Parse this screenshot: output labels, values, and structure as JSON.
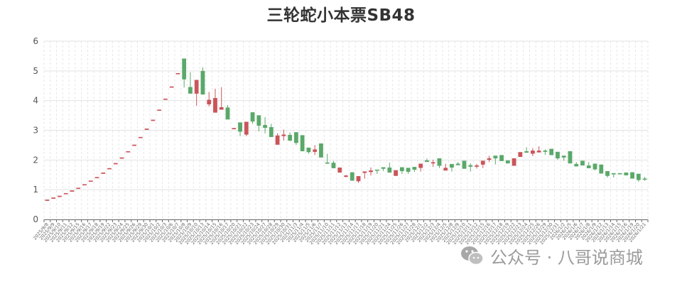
{
  "chart_data": {
    "type": "candlestick",
    "title": "三轮蛇小本票SB48",
    "xlabel": "",
    "ylabel": "",
    "ylim": [
      0,
      6
    ],
    "yticks": [
      0,
      1,
      2,
      3,
      4,
      5,
      6
    ],
    "grid": true,
    "colors": {
      "up": "#c9555a",
      "down": "#5aa86a"
    },
    "value_order": [
      "open",
      "close",
      "low",
      "high"
    ],
    "categories": [
      "2025/9/8",
      "2025/9/9",
      "2025/9/10",
      "2025/9/11",
      "2025/9/12",
      "2025/9/15",
      "2025/9/16",
      "2025/9/17",
      "2025/9/18",
      "2025/9/19",
      "2025/9/22",
      "2025/9/23",
      "2025/9/24",
      "2025/9/25",
      "2025/9/26",
      "2025/9/29",
      "2025/9/30",
      "2025/10/1",
      "2025/10/2",
      "2025/10/3",
      "2025/10/6",
      "2025/10/7",
      "2025/10/8",
      "2025/10/9",
      "2025/10/10",
      "2025/10/13",
      "2025/10/14",
      "2025/10/15",
      "2025/10/16",
      "2025/10/17",
      "2025/10/20",
      "2025/10/21",
      "2025/10/22",
      "2025/10/23",
      "2025/10/24",
      "2025/10/27",
      "2025/10/28",
      "2025/10/29",
      "2025/10/30",
      "2025/10/31",
      "2025/11/3",
      "2025/11/4",
      "2025/11/5",
      "2025/11/6",
      "2025/11/7",
      "2025/11/10",
      "2025/11/11",
      "2025/11/12",
      "2025/11/13",
      "2025/11/14",
      "2025/11/17",
      "2025/11/18",
      "2025/11/19",
      "2025/11/20",
      "2025/11/21",
      "2025/11/24",
      "2025/11/25",
      "2025/11/26",
      "2025/11/27",
      "2025/11/28",
      "2025/12/1",
      "2025/12/2",
      "2025/12/3",
      "2025/12/4",
      "2025/12/5",
      "2025/12/8",
      "2025/12/9",
      "2025/12/10",
      "2025/12/11",
      "2025/12/12",
      "2025/12/15",
      "2025/12/16",
      "2025/12/17",
      "2025/12/18",
      "2025/12/19",
      "2025/12/22",
      "2025/12/23",
      "2025/12/24",
      "2025/12/25",
      "2025/12/26",
      "2025/12/29",
      "2025/12/30",
      "2025/12/31",
      "2026/1/2",
      "2026/1/5",
      "2026/1/6",
      "2026/1/7",
      "2026/1/8",
      "2026/1/9",
      "2026/1/12",
      "2026/1/13",
      "2026/1/14",
      "2026/1/15",
      "2026/1/16",
      "2026/1/19",
      "2026/1/20",
      "2026/1/21"
    ],
    "values": [
      [
        0.65,
        0.66,
        0.65,
        0.66
      ],
      [
        0.72,
        0.73,
        0.72,
        0.73
      ],
      [
        0.78,
        0.79,
        0.78,
        0.79
      ],
      [
        0.87,
        0.88,
        0.87,
        0.88
      ],
      [
        0.96,
        0.97,
        0.96,
        0.97
      ],
      [
        1.05,
        1.06,
        1.05,
        1.06
      ],
      [
        1.17,
        1.18,
        1.17,
        1.18
      ],
      [
        1.29,
        1.3,
        1.29,
        1.3
      ],
      [
        1.41,
        1.42,
        1.41,
        1.42
      ],
      [
        1.56,
        1.57,
        1.56,
        1.57
      ],
      [
        1.71,
        1.72,
        1.71,
        1.72
      ],
      [
        1.88,
        1.89,
        1.88,
        1.89
      ],
      [
        2.07,
        2.08,
        2.07,
        2.08
      ],
      [
        2.28,
        2.29,
        2.28,
        2.29
      ],
      [
        2.5,
        2.51,
        2.5,
        2.51
      ],
      [
        2.76,
        2.77,
        2.76,
        2.77
      ],
      [
        3.04,
        3.05,
        3.04,
        3.05
      ],
      [
        3.34,
        3.35,
        3.34,
        3.35
      ],
      [
        3.68,
        3.69,
        3.68,
        3.69
      ],
      [
        4.05,
        4.06,
        4.05,
        4.06
      ],
      [
        4.46,
        4.47,
        4.46,
        4.47
      ],
      [
        4.91,
        4.92,
        4.91,
        4.92
      ],
      [
        5.41,
        4.72,
        4.44,
        5.41
      ],
      [
        4.45,
        4.24,
        4.24,
        4.96
      ],
      [
        4.24,
        4.69,
        3.82,
        4.69
      ],
      [
        4.99,
        4.21,
        4.21,
        5.12
      ],
      [
        3.88,
        4.02,
        3.8,
        4.29
      ],
      [
        3.6,
        4.08,
        3.6,
        4.4
      ],
      [
        3.7,
        3.77,
        3.7,
        4.45
      ],
      [
        3.76,
        3.37,
        3.37,
        3.85
      ],
      [
        3.05,
        3.07,
        3.04,
        3.08
      ],
      [
        3.26,
        2.96,
        2.8,
        3.26
      ],
      [
        2.86,
        3.28,
        2.8,
        3.28
      ],
      [
        3.6,
        3.3,
        3.22,
        3.6
      ],
      [
        3.5,
        3.16,
        2.96,
        3.5
      ],
      [
        3.17,
        3.09,
        2.9,
        3.44
      ],
      [
        3.1,
        2.78,
        2.78,
        3.22
      ],
      [
        2.52,
        2.82,
        2.52,
        2.9
      ],
      [
        2.81,
        2.85,
        2.65,
        3.02
      ],
      [
        2.84,
        2.66,
        2.63,
        2.93
      ],
      [
        2.93,
        2.58,
        2.5,
        2.93
      ],
      [
        2.83,
        2.3,
        2.3,
        2.83
      ],
      [
        2.41,
        2.27,
        2.21,
        2.41
      ],
      [
        2.28,
        2.35,
        2.17,
        2.5
      ],
      [
        2.55,
        2.09,
        2.09,
        2.55
      ],
      [
        1.91,
        1.9,
        1.9,
        2.21
      ],
      [
        1.9,
        1.73,
        1.73,
        1.97
      ],
      [
        1.58,
        1.74,
        1.58,
        1.74
      ],
      [
        1.45,
        1.47,
        1.41,
        1.5
      ],
      [
        1.58,
        1.31,
        1.31,
        1.58
      ],
      [
        1.29,
        1.45,
        1.23,
        1.45
      ],
      [
        1.57,
        1.61,
        1.37,
        1.61
      ],
      [
        1.6,
        1.64,
        1.48,
        1.75
      ],
      [
        1.67,
        1.66,
        1.53,
        1.67
      ],
      [
        1.75,
        1.71,
        1.63,
        1.75
      ],
      [
        1.74,
        1.58,
        1.58,
        1.91
      ],
      [
        1.47,
        1.65,
        1.47,
        1.65
      ],
      [
        1.75,
        1.63,
        1.53,
        1.75
      ],
      [
        1.73,
        1.61,
        1.53,
        1.73
      ],
      [
        1.76,
        1.68,
        1.6,
        1.76
      ],
      [
        1.74,
        1.87,
        1.61,
        1.87
      ],
      [
        1.98,
        1.94,
        1.94,
        2.05
      ],
      [
        1.89,
        1.92,
        1.77,
        2.01
      ],
      [
        2.05,
        1.81,
        1.73,
        2.05
      ],
      [
        1.65,
        1.73,
        1.65,
        1.87
      ],
      [
        1.86,
        1.75,
        1.61,
        1.86
      ],
      [
        1.87,
        1.83,
        1.83,
        1.93
      ],
      [
        1.97,
        1.71,
        1.71,
        1.97
      ],
      [
        1.82,
        1.78,
        1.61,
        1.89
      ],
      [
        1.78,
        1.81,
        1.71,
        1.87
      ],
      [
        1.85,
        1.97,
        1.73,
        1.97
      ],
      [
        2.01,
        2.05,
        1.93,
        2.14
      ],
      [
        2.14,
        2.06,
        1.85,
        2.14
      ],
      [
        2.16,
        1.97,
        1.97,
        2.16
      ],
      [
        1.98,
        1.89,
        1.89,
        1.98
      ],
      [
        1.81,
        2.05,
        1.81,
        2.05
      ],
      [
        2.11,
        2.26,
        2.11,
        2.26
      ],
      [
        2.29,
        2.25,
        2.25,
        2.43
      ],
      [
        2.22,
        2.31,
        2.13,
        2.4
      ],
      [
        2.26,
        2.31,
        2.26,
        2.46
      ],
      [
        2.31,
        2.3,
        2.17,
        2.36
      ],
      [
        2.37,
        2.17,
        2.17,
        2.37
      ],
      [
        2.27,
        2.06,
        2.01,
        2.27
      ],
      [
        2.14,
        2.09,
        1.97,
        2.14
      ],
      [
        2.29,
        1.89,
        1.89,
        2.29
      ],
      [
        1.86,
        1.79,
        1.79,
        1.93
      ],
      [
        1.97,
        1.82,
        1.82,
        1.97
      ],
      [
        1.81,
        1.73,
        1.73,
        1.93
      ],
      [
        1.87,
        1.69,
        1.65,
        1.87
      ],
      [
        1.84,
        1.55,
        1.55,
        1.84
      ],
      [
        1.62,
        1.47,
        1.41,
        1.62
      ],
      [
        1.55,
        1.52,
        1.41,
        1.55
      ],
      [
        1.55,
        1.54,
        1.53,
        1.56
      ],
      [
        1.57,
        1.49,
        1.49,
        1.57
      ],
      [
        1.58,
        1.38,
        1.38,
        1.58
      ],
      [
        1.53,
        1.33,
        1.27,
        1.53
      ],
      [
        1.37,
        1.36,
        1.3,
        1.43
      ]
    ]
  },
  "watermark": {
    "text": "公众号 · 八哥说商城",
    "icon": "wechat-icon"
  }
}
